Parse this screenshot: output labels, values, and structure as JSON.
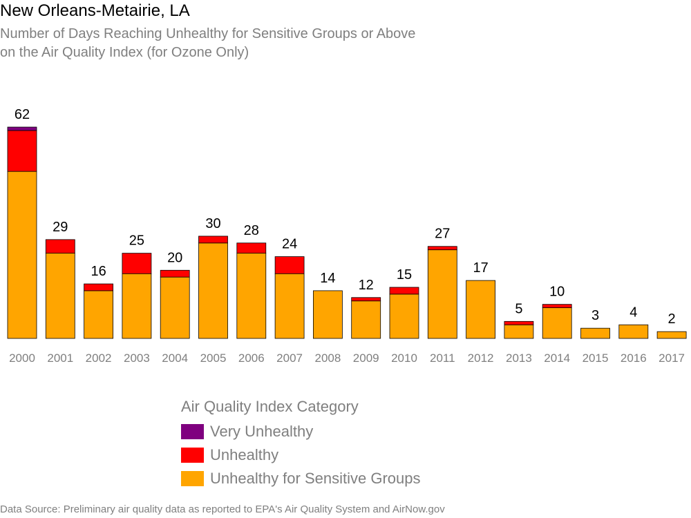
{
  "title": "New Orleans-Metairie, LA",
  "subtitle_line1": "Number of Days Reaching Unhealthy for Sensitive Groups or Above",
  "subtitle_line2": "on the Air Quality Index (for Ozone Only)",
  "legend": {
    "title": "Air Quality Index Category",
    "items": [
      {
        "label": "Very Unhealthy",
        "color": "#7f007f"
      },
      {
        "label": "Unhealthy",
        "color": "#ff0000"
      },
      {
        "label": "Unhealthy for Sensitive Groups",
        "color": "#ffa500"
      }
    ]
  },
  "source": "Data Source: Preliminary air quality data as reported to EPA's Air Quality System and AirNow.gov",
  "chart_data": {
    "type": "bar",
    "stacked": true,
    "categories": [
      "2000",
      "2001",
      "2002",
      "2003",
      "2004",
      "2005",
      "2006",
      "2007",
      "2008",
      "2009",
      "2010",
      "2011",
      "2012",
      "2013",
      "2014",
      "2015",
      "2016",
      "2017"
    ],
    "totals": [
      62,
      29,
      16,
      25,
      20,
      30,
      28,
      24,
      14,
      12,
      15,
      27,
      17,
      5,
      10,
      3,
      4,
      2
    ],
    "series": [
      {
        "name": "Unhealthy for Sensitive Groups",
        "color": "#ffa500",
        "values": [
          49,
          25,
          14,
          19,
          18,
          28,
          25,
          19,
          14,
          11,
          13,
          26,
          17,
          4,
          9,
          3,
          4,
          2
        ]
      },
      {
        "name": "Unhealthy",
        "color": "#ff0000",
        "values": [
          12,
          4,
          2,
          6,
          2,
          2,
          3,
          5,
          0,
          1,
          2,
          1,
          0,
          1,
          1,
          0,
          0,
          0
        ]
      },
      {
        "name": "Very Unhealthy",
        "color": "#7f007f",
        "values": [
          1,
          0,
          0,
          0,
          0,
          0,
          0,
          0,
          0,
          0,
          0,
          0,
          0,
          0,
          0,
          0,
          0,
          0
        ]
      }
    ],
    "ylim": [
      0,
      62
    ],
    "grid": false,
    "legend_position": "bottom"
  }
}
